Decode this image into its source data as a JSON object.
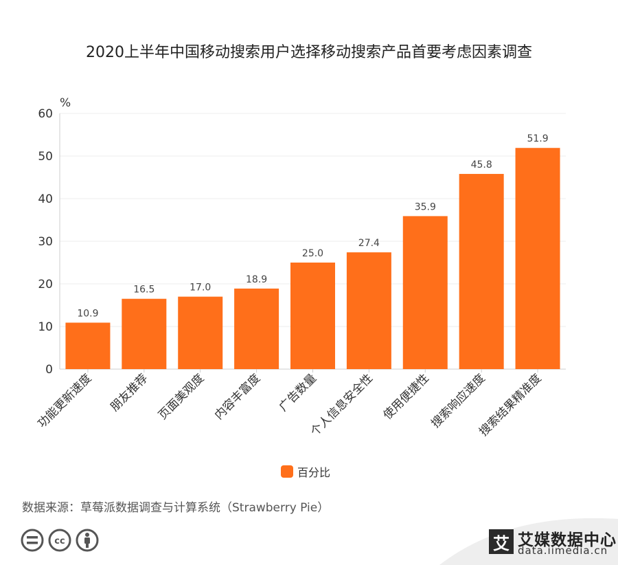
{
  "chart_data": {
    "type": "bar",
    "title": "2020上半年中国移动搜索用户选择移动搜索产品首要考虑因素调查",
    "ylabel": "%",
    "ylim": [
      0,
      60
    ],
    "yticks": [
      0,
      10,
      20,
      30,
      40,
      50,
      60
    ],
    "grid": true,
    "legend_position": "bottom",
    "categories": [
      "功能更新速度",
      "朋友推荐",
      "页面美观度",
      "内容丰富度",
      "广告数量",
      "个人信息安全性",
      "使用便捷性",
      "搜索响应速度",
      "搜索结果精准度"
    ],
    "series": [
      {
        "name": "百分比",
        "color": "#ff6f1a",
        "values": [
          10.9,
          16.5,
          17.0,
          18.9,
          25.0,
          27.4,
          35.9,
          45.8,
          51.9
        ]
      }
    ]
  },
  "footer": {
    "source": "数据来源：草莓派数据调查与计算系统（Strawberry Pie）",
    "brand_logo_char": "艾",
    "brand_name": "艾媒数据中心",
    "brand_url": "data.iimedia.cn",
    "license_icons": [
      "cc-equal-icon",
      "cc-logo-icon",
      "cc-person-icon"
    ]
  }
}
